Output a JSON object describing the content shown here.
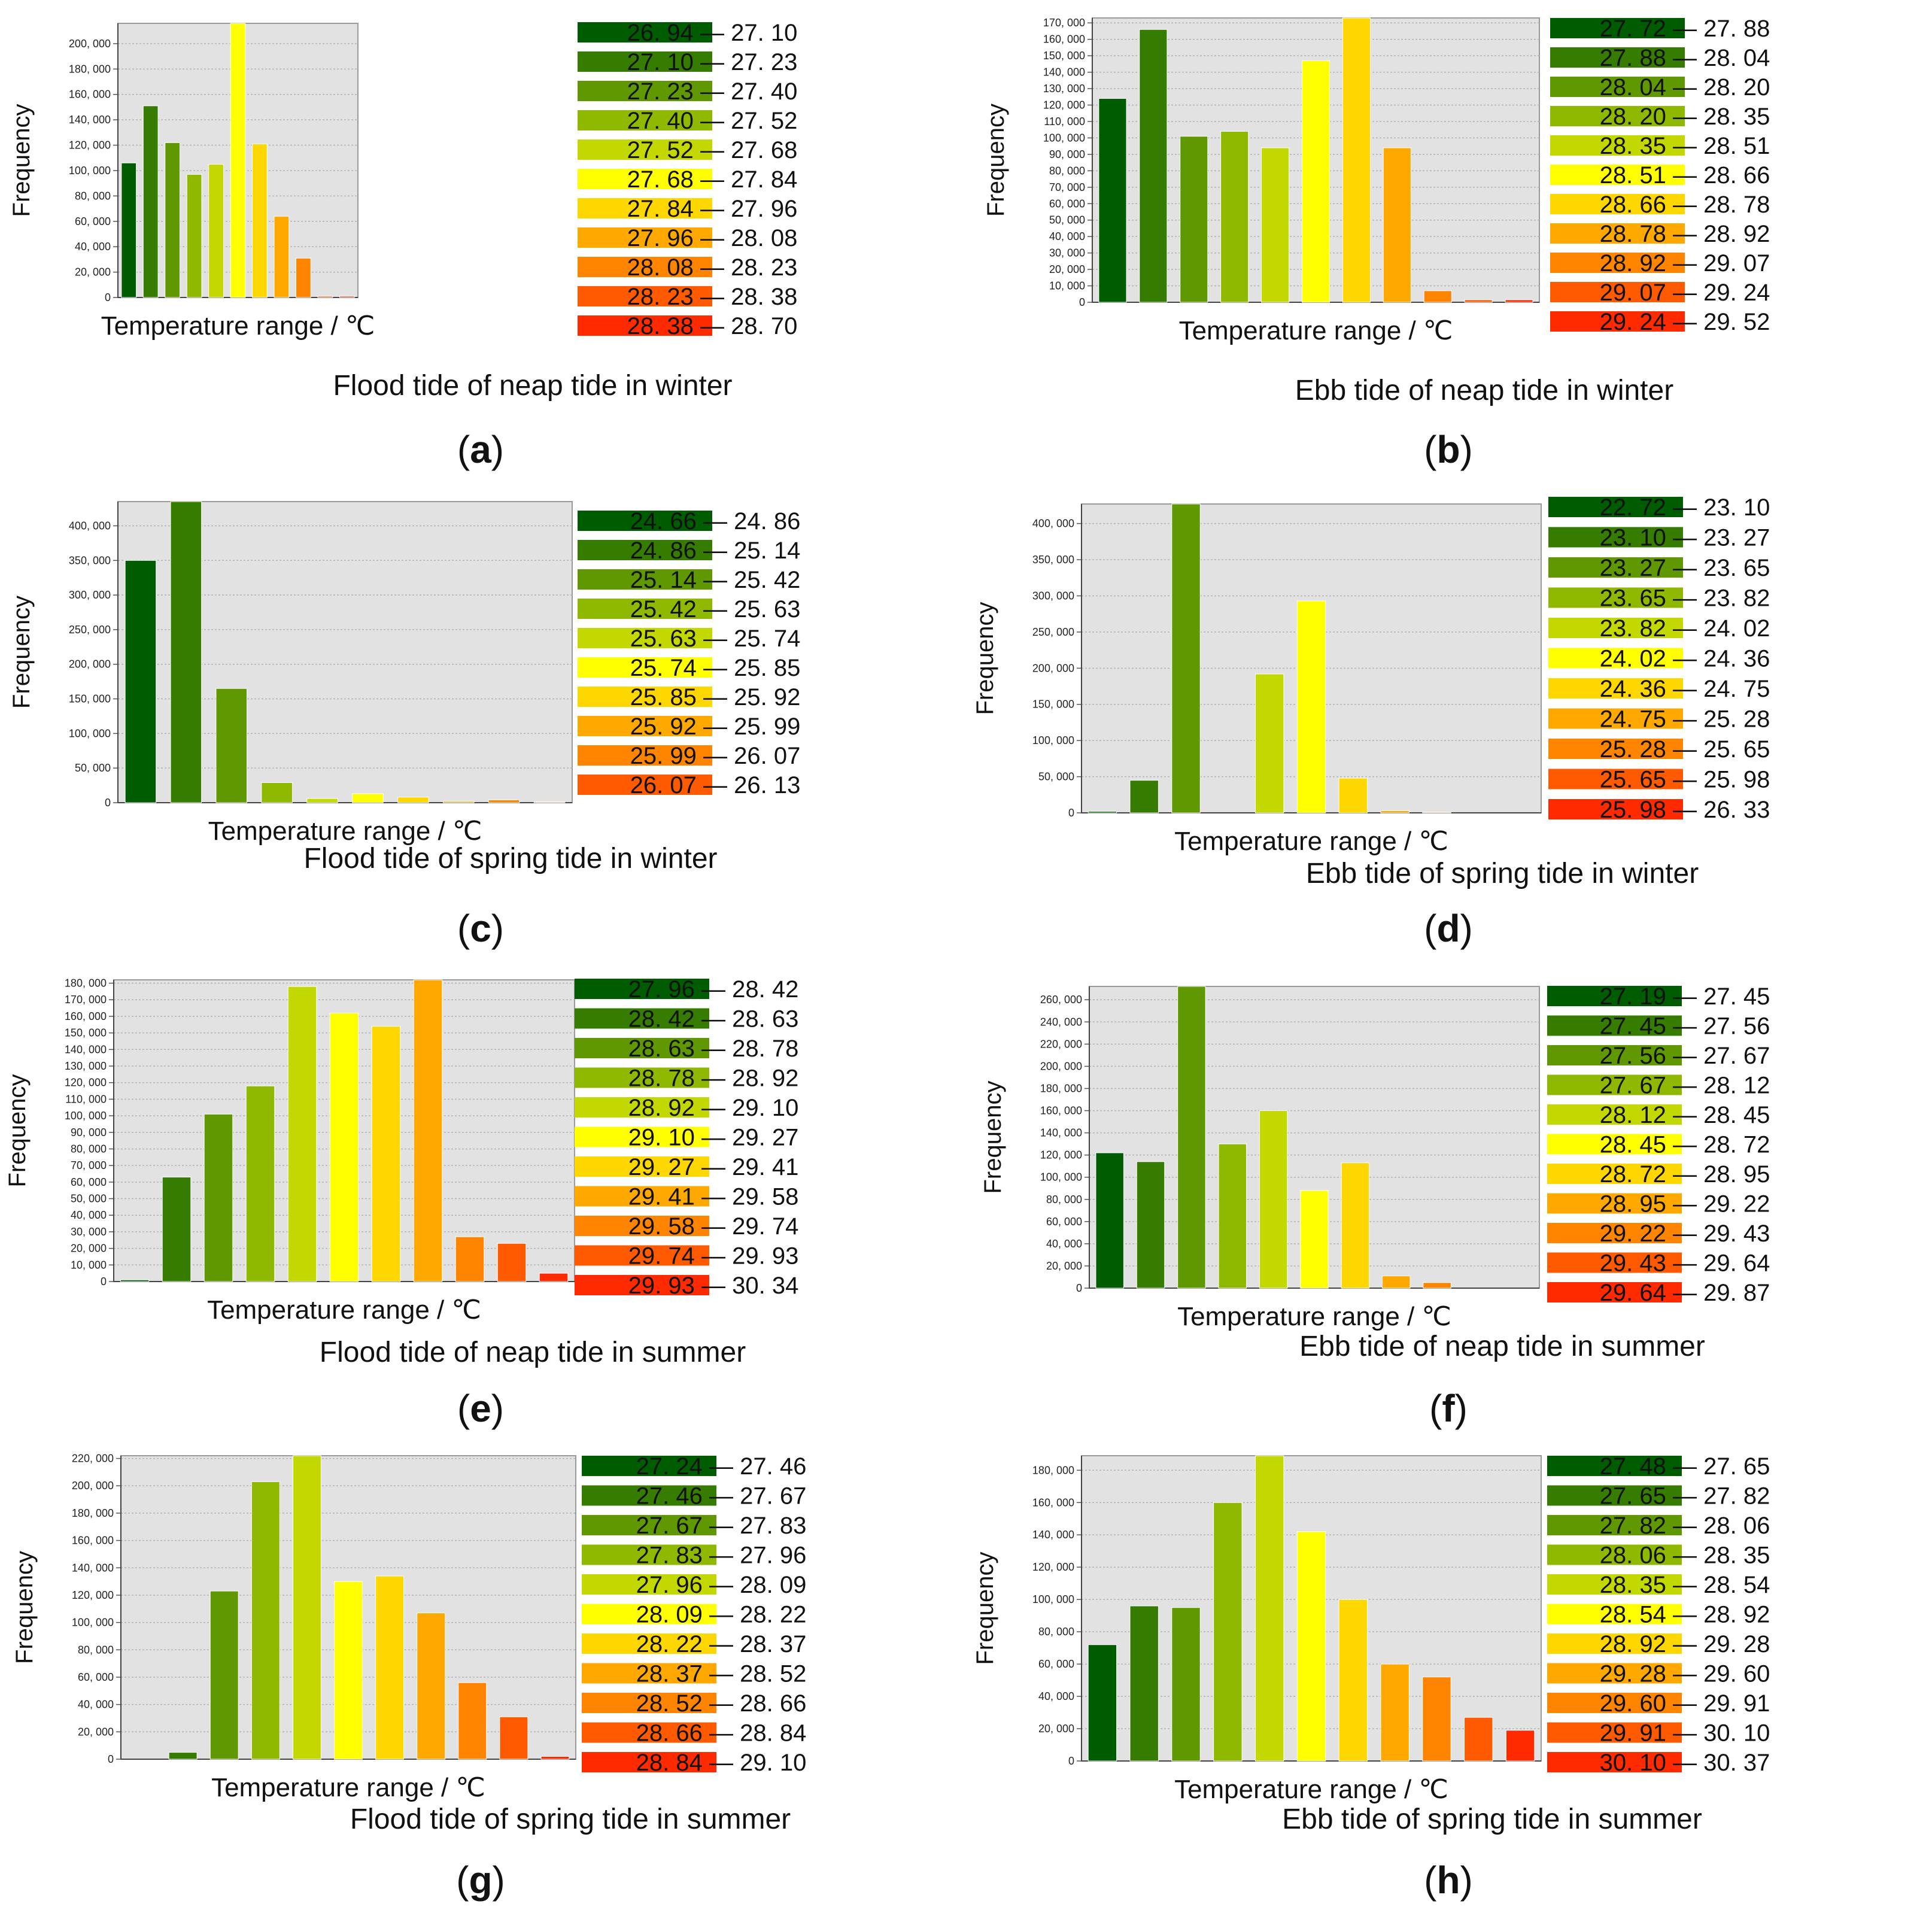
{
  "figure": {
    "palette": [
      "#005c00",
      "#367c00",
      "#5f9800",
      "#8fb900",
      "#c3d800",
      "#ffff00",
      "#ffd700",
      "#ffa900",
      "#ff8400",
      "#ff5a00",
      "#ff2a00"
    ]
  },
  "chart_data": [
    {
      "panel_label": "(a)",
      "label_letter": "a",
      "type": "bar",
      "title": "Flood tide of neap tide in winter",
      "xlabel": "Temperature range / ℃",
      "ylabel": "Frequency",
      "ylim": [
        0,
        216000
      ],
      "yticks": [
        0,
        20000,
        40000,
        60000,
        80000,
        100000,
        120000,
        140000,
        160000,
        180000,
        200000
      ],
      "ytick_labels": [
        "0",
        "20, 000",
        "40, 000",
        "60, 000",
        "80, 000",
        "100, 000",
        "120, 000",
        "140, 000",
        "160, 000",
        "180, 000",
        "200, 000"
      ],
      "grid": true,
      "categories": [
        "26. 94 — 27. 10",
        "27. 10 — 27. 23",
        "27. 23 — 27. 40",
        "27. 40 — 27. 52",
        "27. 52 — 27. 68",
        "27. 68 — 27. 84",
        "27. 84 — 27. 96",
        "27. 96 — 28. 08",
        "28. 08 — 28. 23",
        "28. 23 — 28. 38",
        "28. 38 — 28. 70"
      ],
      "values": [
        106000,
        151000,
        122000,
        97000,
        105000,
        216000,
        121000,
        64000,
        31000,
        1000,
        1000
      ]
    },
    {
      "panel_label": "(b)",
      "label_letter": "b",
      "type": "bar",
      "title": "Ebb tide of neap tide in winter",
      "xlabel": "Temperature range / ℃",
      "ylabel": "Frequency",
      "ylim": [
        0,
        173000
      ],
      "yticks": [
        0,
        10000,
        20000,
        30000,
        40000,
        50000,
        60000,
        70000,
        80000,
        90000,
        100000,
        110000,
        120000,
        130000,
        140000,
        150000,
        160000,
        170000
      ],
      "ytick_labels": [
        "0",
        "10, 000",
        "20, 000",
        "30, 000",
        "40, 000",
        "50, 000",
        "60, 000",
        "70, 000",
        "80, 000",
        "90, 000",
        "100, 000",
        "110, 000",
        "120, 000",
        "130, 000",
        "140, 000",
        "150, 000",
        "160, 000",
        "170, 000"
      ],
      "grid": true,
      "categories": [
        "27. 72 — 27. 88",
        "27. 88 — 28. 04",
        "28. 04 — 28. 20",
        "28. 20 — 28. 35",
        "28. 35 — 28. 51",
        "28. 51 — 28. 66",
        "28. 66 — 28. 78",
        "28. 78 — 28. 92",
        "28. 92 — 29. 07",
        "29. 07 — 29. 24",
        "29. 24 — 29. 52"
      ],
      "values": [
        124000,
        166000,
        101000,
        104000,
        94000,
        147000,
        173000,
        94000,
        7000,
        1500,
        1500
      ]
    },
    {
      "panel_label": "(c)",
      "label_letter": "c",
      "type": "bar",
      "title": "Flood tide of spring tide in winter",
      "xlabel": "Temperature range / ℃",
      "ylabel": "Frequency",
      "ylim": [
        0,
        435000
      ],
      "yticks": [
        0,
        50000,
        100000,
        150000,
        200000,
        250000,
        300000,
        350000,
        400000
      ],
      "ytick_labels": [
        "0",
        "50, 000",
        "100, 000",
        "150, 000",
        "200, 000",
        "250, 000",
        "300, 000",
        "350, 000",
        "400, 000"
      ],
      "grid": true,
      "categories": [
        "24. 66 — 24. 86",
        "24. 86 — 25. 14",
        "25. 14 — 25. 42",
        "25. 42 — 25. 63",
        "25. 63 — 25. 74",
        "25. 74 — 25. 85",
        "25. 85 — 25. 92",
        "25. 92 — 25. 99",
        "25. 99 — 26. 07",
        "26. 07 — 26. 13"
      ],
      "values": [
        350000,
        435000,
        165000,
        29000,
        6000,
        13000,
        8000,
        2000,
        4000,
        1000
      ]
    },
    {
      "panel_label": "(d)",
      "label_letter": "d",
      "type": "bar",
      "title": "Ebb tide of spring tide in winter",
      "xlabel": "Temperature range / ℃",
      "ylabel": "Frequency",
      "ylim": [
        0,
        427000
      ],
      "yticks": [
        0,
        50000,
        100000,
        150000,
        200000,
        250000,
        300000,
        350000,
        400000
      ],
      "ytick_labels": [
        "0",
        "50, 000",
        "100, 000",
        "150, 000",
        "200, 000",
        "250, 000",
        "300, 000",
        "350, 000",
        "400, 000"
      ],
      "grid": true,
      "categories": [
        "22. 72 — 23. 10",
        "23. 10 — 23. 27",
        "23. 27 — 23. 65",
        "23. 65 — 23. 82",
        "23. 82 — 24. 02",
        "24. 02 — 24. 36",
        "24. 36 — 24. 75",
        "24. 75 — 25. 28",
        "25. 28 — 25. 65",
        "25. 65 — 25. 98",
        "25. 98 — 26. 33"
      ],
      "values": [
        2000,
        45000,
        427000,
        0,
        192000,
        293000,
        48000,
        3000,
        1000,
        0,
        0
      ]
    },
    {
      "panel_label": "(e)",
      "label_letter": "e",
      "type": "bar",
      "title": "Flood tide of neap tide in summer",
      "xlabel": "Temperature range / ℃",
      "ylabel": "Frequency",
      "ylim": [
        0,
        182000
      ],
      "yticks": [
        0,
        10000,
        20000,
        30000,
        40000,
        50000,
        60000,
        70000,
        80000,
        90000,
        100000,
        110000,
        120000,
        130000,
        140000,
        150000,
        160000,
        170000,
        180000
      ],
      "ytick_labels": [
        "0",
        "10, 000",
        "20, 000",
        "30, 000",
        "40, 000",
        "50, 000",
        "60, 000",
        "70, 000",
        "80, 000",
        "90, 000",
        "100, 000",
        "110, 000",
        "120, 000",
        "130, 000",
        "140, 000",
        "150, 000",
        "160, 000",
        "170, 000",
        "180, 000"
      ],
      "grid": true,
      "categories": [
        "27. 96 — 28. 42",
        "28. 42 — 28. 63",
        "28. 63 — 28. 78",
        "28. 78 — 28. 92",
        "28. 92 — 29. 10",
        "29. 10 — 29. 27",
        "29. 27 — 29. 41",
        "29. 41 — 29. 58",
        "29. 58 — 29. 74",
        "29. 74 — 29. 93",
        "29. 93 — 30. 34"
      ],
      "values": [
        1000,
        63000,
        101000,
        118000,
        178000,
        162000,
        154000,
        182000,
        27000,
        23000,
        5000
      ]
    },
    {
      "panel_label": "(f)",
      "label_letter": "f",
      "type": "bar",
      "title": "Ebb tide of neap tide in summer",
      "xlabel": "Temperature range / ℃",
      "ylabel": "Frequency",
      "ylim": [
        0,
        272000
      ],
      "yticks": [
        0,
        20000,
        40000,
        60000,
        80000,
        100000,
        120000,
        140000,
        160000,
        180000,
        200000,
        220000,
        240000,
        260000
      ],
      "ytick_labels": [
        "0",
        "20, 000",
        "40, 000",
        "60, 000",
        "80, 000",
        "100, 000",
        "120, 000",
        "140, 000",
        "160, 000",
        "180, 000",
        "200, 000",
        "220, 000",
        "240, 000",
        "260, 000"
      ],
      "grid": true,
      "categories": [
        "27. 19 — 27. 45",
        "27. 45 — 27. 56",
        "27. 56 — 27. 67",
        "27. 67 — 28. 12",
        "28. 12 — 28. 45",
        "28. 45 — 28. 72",
        "28. 72 — 28. 95",
        "28. 95 — 29. 22",
        "29. 22 — 29. 43",
        "29. 43 — 29. 64",
        "29. 64 — 29. 87"
      ],
      "values": [
        122000,
        114000,
        272000,
        130000,
        160000,
        88000,
        113000,
        11000,
        5000,
        0,
        0
      ]
    },
    {
      "panel_label": "(g)",
      "label_letter": "g",
      "type": "bar",
      "title": "Flood tide of spring tide in summer",
      "xlabel": "Temperature range / ℃",
      "ylabel": "Frequency",
      "ylim": [
        0,
        222000
      ],
      "yticks": [
        0,
        20000,
        40000,
        60000,
        80000,
        100000,
        120000,
        140000,
        160000,
        180000,
        200000,
        220000
      ],
      "ytick_labels": [
        "0",
        "20, 000",
        "40, 000",
        "60, 000",
        "80, 000",
        "100, 000",
        "120, 000",
        "140, 000",
        "160, 000",
        "180, 000",
        "200, 000",
        "220, 000"
      ],
      "grid": true,
      "categories": [
        "27. 24 — 27. 46",
        "27. 46 — 27. 67",
        "27. 67 — 27. 83",
        "27. 83 — 27. 96",
        "27. 96 — 28. 09",
        "28. 09 — 28. 22",
        "28. 22 — 28. 37",
        "28. 37 — 28. 52",
        "28. 52 — 28. 66",
        "28. 66 — 28. 84",
        "28. 84 — 29. 10"
      ],
      "values": [
        0,
        5000,
        123000,
        203000,
        222000,
        130000,
        134000,
        107000,
        56000,
        31000,
        2000
      ]
    },
    {
      "panel_label": "(h)",
      "label_letter": "h",
      "type": "bar",
      "title": "Ebb tide of spring tide in summer",
      "xlabel": "Temperature range / ℃",
      "ylabel": "Frequency",
      "ylim": [
        0,
        189000
      ],
      "yticks": [
        0,
        20000,
        40000,
        60000,
        80000,
        100000,
        120000,
        140000,
        160000,
        180000
      ],
      "ytick_labels": [
        "0",
        "20, 000",
        "40, 000",
        "60, 000",
        "80, 000",
        "100, 000",
        "120, 000",
        "140, 000",
        "160, 000",
        "180, 000"
      ],
      "grid": true,
      "categories": [
        "27. 48 — 27. 65",
        "27. 65 — 27. 82",
        "27. 82 — 28. 06",
        "28. 06 — 28. 35",
        "28. 35 — 28. 54",
        "28. 54 — 28. 92",
        "28. 92 — 29. 28",
        "29. 28 — 29. 60",
        "29. 60 — 29. 91",
        "29. 91 — 30. 10",
        "30. 10 — 30. 37"
      ],
      "values": [
        72000,
        96000,
        95000,
        160000,
        189000,
        142000,
        100000,
        60000,
        52000,
        27000,
        19000
      ]
    }
  ]
}
